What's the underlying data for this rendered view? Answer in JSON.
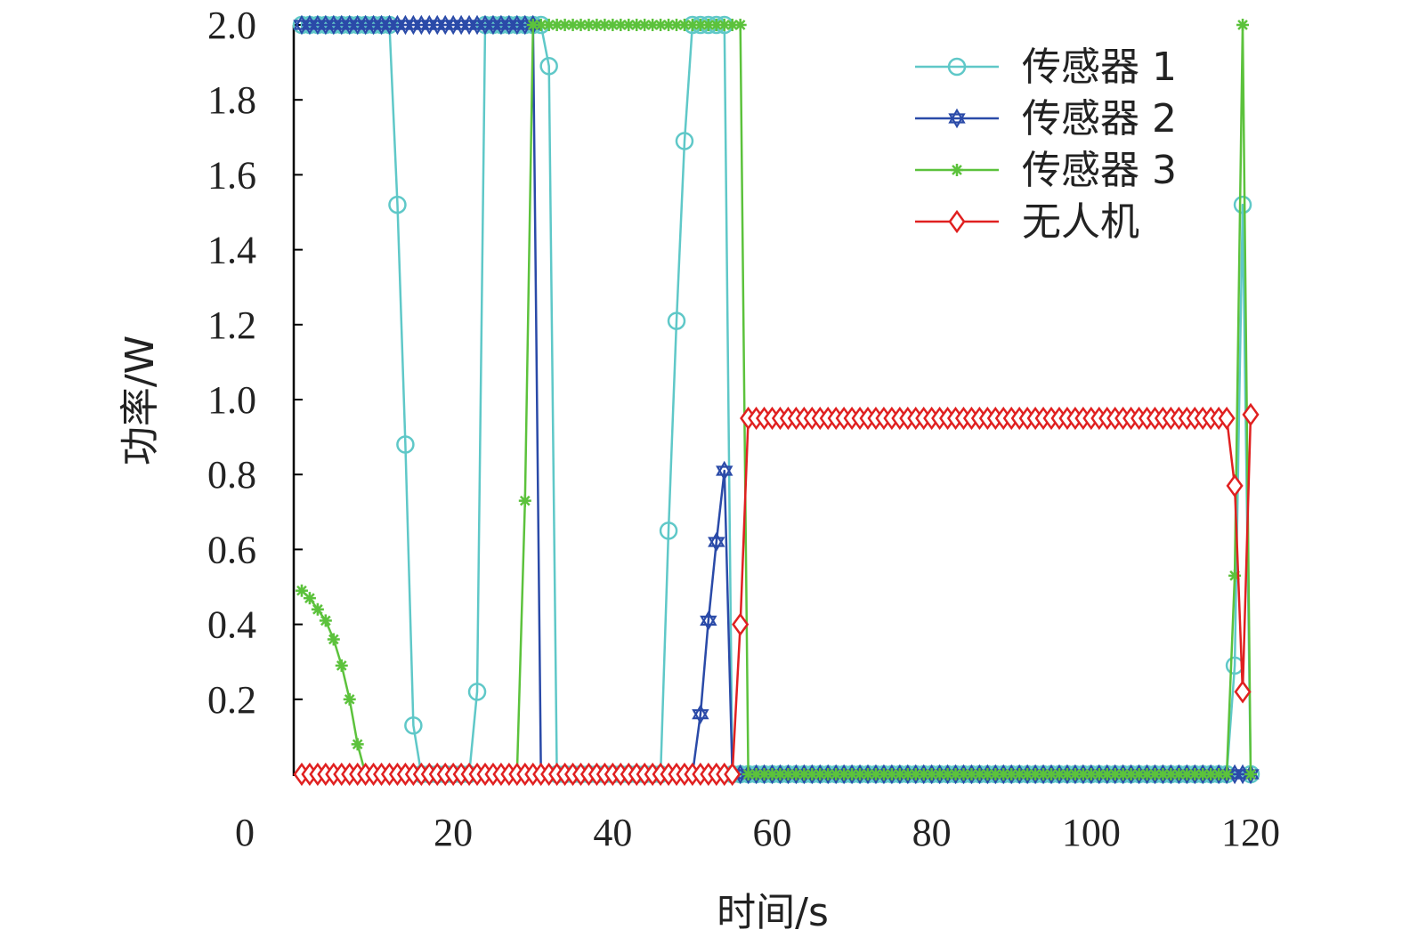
{
  "chart_data": {
    "type": "line",
    "title": "",
    "xlabel": "时间/s",
    "ylabel": "功率/W",
    "xlim": [
      0,
      120
    ],
    "ylim": [
      0,
      2.0
    ],
    "x_ticks": [
      0,
      20,
      40,
      60,
      80,
      100,
      120
    ],
    "x_tick_labels": [
      "0",
      "20",
      "40",
      "60",
      "80",
      "100",
      "120"
    ],
    "y_ticks": [
      0.2,
      0.4,
      0.6,
      0.8,
      1.0,
      1.2,
      1.4,
      1.6,
      1.8,
      2.0
    ],
    "y_tick_labels": [
      "0.2",
      "0.4",
      "0.6",
      "0.8",
      "1.0",
      "1.2",
      "1.4",
      "1.6",
      "1.8",
      "2.0"
    ],
    "grid": false,
    "legend_position": "top-right",
    "series": [
      {
        "name": "传感器 1",
        "color": "#5fc8c8",
        "marker": "circle",
        "x": [
          1,
          2,
          3,
          4,
          5,
          6,
          7,
          8,
          9,
          10,
          11,
          12,
          13,
          14,
          15,
          16,
          17,
          18,
          19,
          20,
          21,
          22,
          23,
          24,
          25,
          26,
          27,
          28,
          29,
          30,
          31,
          32,
          33,
          34,
          35,
          36,
          37,
          38,
          39,
          40,
          41,
          42,
          43,
          44,
          45,
          46,
          47,
          48,
          49,
          50,
          51,
          52,
          53,
          54,
          55,
          56,
          57,
          58,
          59,
          60,
          61,
          62,
          63,
          64,
          65,
          66,
          67,
          68,
          69,
          70,
          71,
          72,
          73,
          74,
          75,
          76,
          77,
          78,
          79,
          80,
          81,
          82,
          83,
          84,
          85,
          86,
          87,
          88,
          89,
          90,
          91,
          92,
          93,
          94,
          95,
          96,
          97,
          98,
          99,
          100,
          101,
          102,
          103,
          104,
          105,
          106,
          107,
          108,
          109,
          110,
          111,
          112,
          113,
          114,
          115,
          116,
          117,
          118,
          119,
          120
        ],
        "values": [
          2,
          2,
          2,
          2,
          2,
          2,
          2,
          2,
          2,
          2,
          2,
          2,
          1.52,
          0.88,
          0.13,
          0,
          0,
          0,
          0,
          0,
          0,
          0,
          0.22,
          2,
          2,
          2,
          2,
          2,
          2,
          2,
          2,
          1.89,
          0,
          0,
          0,
          0,
          0,
          0,
          0,
          0,
          0,
          0,
          0,
          0,
          0,
          0,
          0.65,
          1.21,
          1.69,
          2,
          2,
          2,
          2,
          2,
          0,
          0,
          0,
          0,
          0,
          0,
          0,
          0,
          0,
          0,
          0,
          0,
          0,
          0,
          0,
          0,
          0,
          0,
          0,
          0,
          0,
          0,
          0,
          0,
          0,
          0,
          0,
          0,
          0,
          0,
          0,
          0,
          0,
          0,
          0,
          0,
          0,
          0,
          0,
          0,
          0,
          0,
          0,
          0,
          0,
          0,
          0,
          0,
          0,
          0,
          0,
          0,
          0,
          0,
          0,
          0,
          0,
          0,
          0,
          0,
          0,
          0,
          0,
          0.29,
          1.52,
          0
        ]
      },
      {
        "name": "传感器 2",
        "color": "#2a4aa8",
        "marker": "star",
        "x": [
          1,
          2,
          3,
          4,
          5,
          6,
          7,
          8,
          9,
          10,
          11,
          12,
          13,
          14,
          15,
          16,
          17,
          18,
          19,
          20,
          21,
          22,
          23,
          24,
          25,
          26,
          27,
          28,
          29,
          30,
          31,
          32,
          33,
          34,
          35,
          36,
          37,
          38,
          39,
          40,
          41,
          42,
          43,
          44,
          45,
          46,
          47,
          48,
          49,
          50,
          51,
          52,
          53,
          54,
          55,
          56,
          57,
          58,
          59,
          60,
          61,
          62,
          63,
          64,
          65,
          66,
          67,
          68,
          69,
          70,
          71,
          72,
          73,
          74,
          75,
          76,
          77,
          78,
          79,
          80,
          81,
          82,
          83,
          84,
          85,
          86,
          87,
          88,
          89,
          90,
          91,
          92,
          93,
          94,
          95,
          96,
          97,
          98,
          99,
          100,
          101,
          102,
          103,
          104,
          105,
          106,
          107,
          108,
          109,
          110,
          111,
          112,
          113,
          114,
          115,
          116,
          117,
          118,
          119,
          120
        ],
        "values": [
          2,
          2,
          2,
          2,
          2,
          2,
          2,
          2,
          2,
          2,
          2,
          2,
          2,
          2,
          2,
          2,
          2,
          2,
          2,
          2,
          2,
          2,
          2,
          2,
          2,
          2,
          2,
          2,
          2,
          2,
          0,
          0,
          0,
          0,
          0,
          0,
          0,
          0,
          0,
          0,
          0,
          0,
          0,
          0,
          0,
          0,
          0,
          0,
          0,
          0,
          0.16,
          0.41,
          0.62,
          0.81,
          0,
          0,
          0,
          0,
          0,
          0,
          0,
          0,
          0,
          0,
          0,
          0,
          0,
          0,
          0,
          0,
          0,
          0,
          0,
          0,
          0,
          0,
          0,
          0,
          0,
          0,
          0,
          0,
          0,
          0,
          0,
          0,
          0,
          0,
          0,
          0,
          0,
          0,
          0,
          0,
          0,
          0,
          0,
          0,
          0,
          0,
          0,
          0,
          0,
          0,
          0,
          0,
          0,
          0,
          0,
          0,
          0,
          0,
          0,
          0,
          0,
          0,
          0,
          0,
          0,
          0
        ]
      },
      {
        "name": "传感器 3",
        "color": "#5cc23c",
        "marker": "asterisk",
        "x": [
          1,
          2,
          3,
          4,
          5,
          6,
          7,
          8,
          9,
          10,
          11,
          12,
          13,
          14,
          15,
          16,
          17,
          18,
          19,
          20,
          21,
          22,
          23,
          24,
          25,
          26,
          27,
          28,
          29,
          30,
          31,
          32,
          33,
          34,
          35,
          36,
          37,
          38,
          39,
          40,
          41,
          42,
          43,
          44,
          45,
          46,
          47,
          48,
          49,
          50,
          51,
          52,
          53,
          54,
          55,
          56,
          57,
          58,
          59,
          60,
          61,
          62,
          63,
          64,
          65,
          66,
          67,
          68,
          69,
          70,
          71,
          72,
          73,
          74,
          75,
          76,
          77,
          78,
          79,
          80,
          81,
          82,
          83,
          84,
          85,
          86,
          87,
          88,
          89,
          90,
          91,
          92,
          93,
          94,
          95,
          96,
          97,
          98,
          99,
          100,
          101,
          102,
          103,
          104,
          105,
          106,
          107,
          108,
          109,
          110,
          111,
          112,
          113,
          114,
          115,
          116,
          117,
          118,
          119,
          120
        ],
        "values": [
          0.49,
          0.47,
          0.44,
          0.41,
          0.36,
          0.29,
          0.2,
          0.08,
          0,
          0,
          0,
          0,
          0,
          0,
          0,
          0,
          0,
          0,
          0,
          0,
          0,
          0,
          0,
          0,
          0,
          0,
          0,
          0,
          0.73,
          2,
          2,
          2,
          2,
          2,
          2,
          2,
          2,
          2,
          2,
          2,
          2,
          2,
          2,
          2,
          2,
          2,
          2,
          2,
          2,
          2,
          2,
          2,
          2,
          2,
          2,
          2,
          0,
          0,
          0,
          0,
          0,
          0,
          0,
          0,
          0,
          0,
          0,
          0,
          0,
          0,
          0,
          0,
          0,
          0,
          0,
          0,
          0,
          0,
          0,
          0,
          0,
          0,
          0,
          0,
          0,
          0,
          0,
          0,
          0,
          0,
          0,
          0,
          0,
          0,
          0,
          0,
          0,
          0,
          0,
          0,
          0,
          0,
          0,
          0,
          0,
          0,
          0,
          0,
          0,
          0,
          0,
          0,
          0,
          0,
          0,
          0,
          0,
          0.53,
          2,
          0
        ]
      },
      {
        "name": "无人机",
        "color": "#e02020",
        "marker": "diamond",
        "x": [
          1,
          2,
          3,
          4,
          5,
          6,
          7,
          8,
          9,
          10,
          11,
          12,
          13,
          14,
          15,
          16,
          17,
          18,
          19,
          20,
          21,
          22,
          23,
          24,
          25,
          26,
          27,
          28,
          29,
          30,
          31,
          32,
          33,
          34,
          35,
          36,
          37,
          38,
          39,
          40,
          41,
          42,
          43,
          44,
          45,
          46,
          47,
          48,
          49,
          50,
          51,
          52,
          53,
          54,
          55,
          56,
          57,
          58,
          59,
          60,
          61,
          62,
          63,
          64,
          65,
          66,
          67,
          68,
          69,
          70,
          71,
          72,
          73,
          74,
          75,
          76,
          77,
          78,
          79,
          80,
          81,
          82,
          83,
          84,
          85,
          86,
          87,
          88,
          89,
          90,
          91,
          92,
          93,
          94,
          95,
          96,
          97,
          98,
          99,
          100,
          101,
          102,
          103,
          104,
          105,
          106,
          107,
          108,
          109,
          110,
          111,
          112,
          113,
          114,
          115,
          116,
          117,
          118,
          119,
          120
        ],
        "values": [
          0,
          0,
          0,
          0,
          0,
          0,
          0,
          0,
          0,
          0,
          0,
          0,
          0,
          0,
          0,
          0,
          0,
          0,
          0,
          0,
          0,
          0,
          0,
          0,
          0,
          0,
          0,
          0,
          0,
          0,
          0,
          0,
          0,
          0,
          0,
          0,
          0,
          0,
          0,
          0,
          0,
          0,
          0,
          0,
          0,
          0,
          0,
          0,
          0,
          0,
          0,
          0,
          0,
          0,
          0,
          0.4,
          0.95,
          0.95,
          0.95,
          0.95,
          0.95,
          0.95,
          0.95,
          0.95,
          0.95,
          0.95,
          0.95,
          0.95,
          0.95,
          0.95,
          0.95,
          0.95,
          0.95,
          0.95,
          0.95,
          0.95,
          0.95,
          0.95,
          0.95,
          0.95,
          0.95,
          0.95,
          0.95,
          0.95,
          0.95,
          0.95,
          0.95,
          0.95,
          0.95,
          0.95,
          0.95,
          0.95,
          0.95,
          0.95,
          0.95,
          0.95,
          0.95,
          0.95,
          0.95,
          0.95,
          0.95,
          0.95,
          0.95,
          0.95,
          0.95,
          0.95,
          0.95,
          0.95,
          0.95,
          0.95,
          0.95,
          0.95,
          0.95,
          0.95,
          0.95,
          0.95,
          0.95,
          0.77,
          0.22,
          0.96
        ]
      }
    ]
  }
}
